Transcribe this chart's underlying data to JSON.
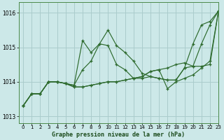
{
  "xlabel": "Graphe pression niveau de la mer (hPa)",
  "xlim": [
    -0.5,
    23
  ],
  "ylim": [
    1012.8,
    1016.3
  ],
  "yticks": [
    1013,
    1014,
    1015,
    1016
  ],
  "xticks": [
    0,
    1,
    2,
    3,
    4,
    5,
    6,
    7,
    8,
    9,
    10,
    11,
    12,
    13,
    14,
    15,
    16,
    17,
    18,
    19,
    20,
    21,
    22,
    23
  ],
  "bg_color": "#cce8e8",
  "grid_color": "#aacccc",
  "line_color": "#2d6a2d",
  "lines": [
    [
      1013.3,
      1013.65,
      1013.65,
      1014.0,
      1014.0,
      1013.95,
      1013.9,
      1015.2,
      1014.85,
      1015.1,
      1015.05,
      1014.5,
      1014.35,
      1014.1,
      1014.1,
      1014.15,
      1014.1,
      1014.05,
      1014.05,
      1014.4,
      1015.1,
      1015.65,
      1015.75,
      1016.05
    ],
    [
      1013.3,
      1013.65,
      1013.65,
      1014.0,
      1014.0,
      1013.95,
      1013.9,
      1014.35,
      1014.6,
      1015.1,
      1015.5,
      1015.05,
      1014.85,
      1014.6,
      1014.25,
      1014.15,
      1014.1,
      1014.05,
      1014.05,
      1014.4,
      1014.45,
      1015.1,
      1015.65,
      1016.05
    ],
    [
      1013.3,
      1013.65,
      1013.65,
      1014.0,
      1014.0,
      1013.95,
      1013.85,
      1013.85,
      1013.9,
      1013.95,
      1014.0,
      1014.0,
      1014.05,
      1014.1,
      1014.15,
      1014.3,
      1014.35,
      1014.4,
      1014.5,
      1014.55,
      1014.45,
      1014.45,
      1014.5,
      1016.05
    ],
    [
      1013.3,
      1013.65,
      1013.65,
      1014.0,
      1014.0,
      1013.95,
      1013.85,
      1013.85,
      1013.9,
      1013.95,
      1014.0,
      1014.0,
      1014.05,
      1014.1,
      1014.15,
      1014.3,
      1014.35,
      1013.8,
      1014.0,
      1014.1,
      1014.2,
      1014.4,
      1014.6,
      1016.05
    ]
  ]
}
